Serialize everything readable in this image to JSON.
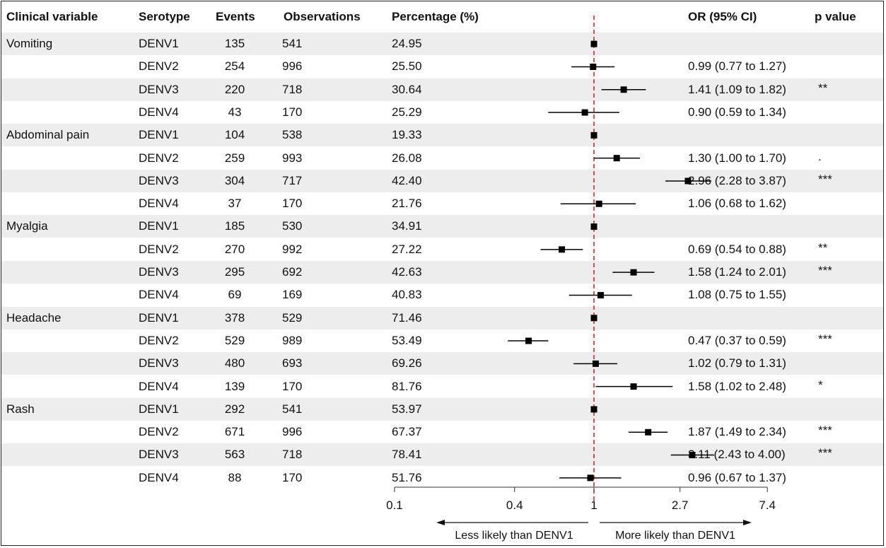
{
  "headers": {
    "variable": "Clinical variable",
    "serotype": "Serotype",
    "events": "Events",
    "observations": "Observations",
    "percentage": "Percentage (%)",
    "or": "OR (95% CI)",
    "p": "p value"
  },
  "axis": {
    "ticks": [
      "0.1",
      "0.4",
      "1",
      "2.7",
      "7.4"
    ],
    "tick_values": [
      0.1,
      0.4,
      1,
      2.7,
      7.4
    ],
    "reference": 1,
    "left_note": "Less likely than DENV1",
    "right_note": "More likely than DENV1"
  },
  "chart_data": {
    "type": "forest",
    "scale": "log",
    "reference_line": 1,
    "rows": [
      {
        "variable": "Vomiting",
        "serotype": "DENV1",
        "events": "135",
        "observations": "541",
        "percentage": "24.95",
        "or": 1,
        "lo": 1,
        "hi": 1,
        "or_text": "",
        "p": ""
      },
      {
        "variable": "",
        "serotype": "DENV2",
        "events": "254",
        "observations": "996",
        "percentage": "25.50",
        "or": 0.99,
        "lo": 0.77,
        "hi": 1.27,
        "or_text": "0.99 (0.77 to 1.27)",
        "p": ""
      },
      {
        "variable": "",
        "serotype": "DENV3",
        "events": "220",
        "observations": "718",
        "percentage": "30.64",
        "or": 1.41,
        "lo": 1.09,
        "hi": 1.82,
        "or_text": "1.41 (1.09 to 1.82)",
        "p": "**"
      },
      {
        "variable": "",
        "serotype": "DENV4",
        "events": "43",
        "observations": "170",
        "percentage": "25.29",
        "or": 0.9,
        "lo": 0.59,
        "hi": 1.34,
        "or_text": "0.90 (0.59 to 1.34)",
        "p": ""
      },
      {
        "variable": "Abdominal pain",
        "serotype": "DENV1",
        "events": "104",
        "observations": "538",
        "percentage": "19.33",
        "or": 1,
        "lo": 1,
        "hi": 1,
        "or_text": "",
        "p": ""
      },
      {
        "variable": "",
        "serotype": "DENV2",
        "events": "259",
        "observations": "993",
        "percentage": "26.08",
        "or": 1.3,
        "lo": 1.0,
        "hi": 1.7,
        "or_text": "1.30 (1.00 to 1.70)",
        "p": "."
      },
      {
        "variable": "",
        "serotype": "DENV3",
        "events": "304",
        "observations": "717",
        "percentage": "42.40",
        "or": 2.96,
        "lo": 2.28,
        "hi": 3.87,
        "or_text": "2.96 (2.28 to 3.87)",
        "p": "***"
      },
      {
        "variable": "",
        "serotype": "DENV4",
        "events": "37",
        "observations": "170",
        "percentage": "21.76",
        "or": 1.06,
        "lo": 0.68,
        "hi": 1.62,
        "or_text": "1.06 (0.68 to 1.62)",
        "p": ""
      },
      {
        "variable": "Myalgia",
        "serotype": "DENV1",
        "events": "185",
        "observations": "530",
        "percentage": "34.91",
        "or": 1,
        "lo": 1,
        "hi": 1,
        "or_text": "",
        "p": ""
      },
      {
        "variable": "",
        "serotype": "DENV2",
        "events": "270",
        "observations": "992",
        "percentage": "27.22",
        "or": 0.69,
        "lo": 0.54,
        "hi": 0.88,
        "or_text": "0.69 (0.54 to 0.88)",
        "p": "**"
      },
      {
        "variable": "",
        "serotype": "DENV3",
        "events": "295",
        "observations": "692",
        "percentage": "42.63",
        "or": 1.58,
        "lo": 1.24,
        "hi": 2.01,
        "or_text": "1.58 (1.24 to 2.01)",
        "p": "***"
      },
      {
        "variable": "",
        "serotype": "DENV4",
        "events": "69",
        "observations": "169",
        "percentage": "40.83",
        "or": 1.08,
        "lo": 0.75,
        "hi": 1.55,
        "or_text": "1.08 (0.75 to 1.55)",
        "p": ""
      },
      {
        "variable": "Headache",
        "serotype": "DENV1",
        "events": "378",
        "observations": "529",
        "percentage": "71.46",
        "or": 1,
        "lo": 1,
        "hi": 1,
        "or_text": "",
        "p": ""
      },
      {
        "variable": "",
        "serotype": "DENV2",
        "events": "529",
        "observations": "989",
        "percentage": "53.49",
        "or": 0.47,
        "lo": 0.37,
        "hi": 0.59,
        "or_text": "0.47 (0.37 to 0.59)",
        "p": "***"
      },
      {
        "variable": "",
        "serotype": "DENV3",
        "events": "480",
        "observations": "693",
        "percentage": "69.26",
        "or": 1.02,
        "lo": 0.79,
        "hi": 1.31,
        "or_text": "1.02 (0.79 to 1.31)",
        "p": ""
      },
      {
        "variable": "",
        "serotype": "DENV4",
        "events": "139",
        "observations": "170",
        "percentage": "81.76",
        "or": 1.58,
        "lo": 1.02,
        "hi": 2.48,
        "or_text": "1.58 (1.02 to 2.48)",
        "p": "*"
      },
      {
        "variable": "Rash",
        "serotype": "DENV1",
        "events": "292",
        "observations": "541",
        "percentage": "53.97",
        "or": 1,
        "lo": 1,
        "hi": 1,
        "or_text": "",
        "p": ""
      },
      {
        "variable": "",
        "serotype": "DENV2",
        "events": "671",
        "observations": "996",
        "percentage": "67.37",
        "or": 1.87,
        "lo": 1.49,
        "hi": 2.34,
        "or_text": "1.87 (1.49 to 2.34)",
        "p": "***"
      },
      {
        "variable": "",
        "serotype": "DENV3",
        "events": "563",
        "observations": "718",
        "percentage": "78.41",
        "or": 3.11,
        "lo": 2.43,
        "hi": 4.0,
        "or_text": "3.11 (2.43 to 4.00)",
        "p": "***"
      },
      {
        "variable": "",
        "serotype": "DENV4",
        "events": "88",
        "observations": "170",
        "percentage": "51.76",
        "or": 0.96,
        "lo": 0.67,
        "hi": 1.37,
        "or_text": "0.96 (0.67 to 1.37)",
        "p": ""
      }
    ],
    "colors": {
      "reference_line": "#d62728",
      "marker": "#000000",
      "stripe": "#ededed"
    }
  }
}
